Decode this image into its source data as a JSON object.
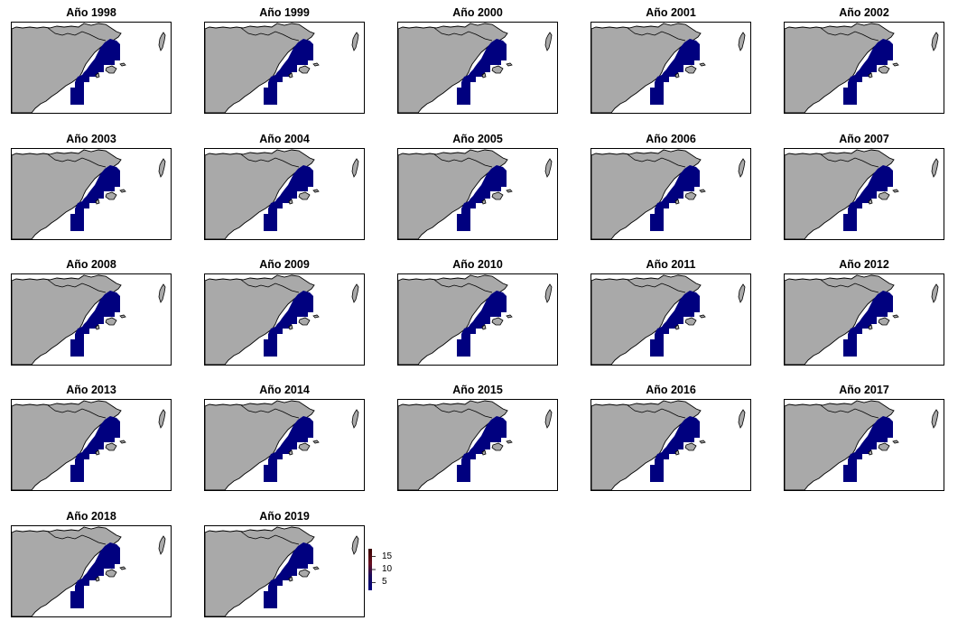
{
  "panels": [
    {
      "title": "Año 1998"
    },
    {
      "title": "Año 1999"
    },
    {
      "title": "Año 2000"
    },
    {
      "title": "Año 2001"
    },
    {
      "title": "Año 2002"
    },
    {
      "title": "Año 2003"
    },
    {
      "title": "Año 2004"
    },
    {
      "title": "Año 2005"
    },
    {
      "title": "Año 2006"
    },
    {
      "title": "Año 2007"
    },
    {
      "title": "Año 2008"
    },
    {
      "title": "Año 2009"
    },
    {
      "title": "Año 2010"
    },
    {
      "title": "Año 2011"
    },
    {
      "title": "Año 2012"
    },
    {
      "title": "Año 2013"
    },
    {
      "title": "Año 2014"
    },
    {
      "title": "Año 2015"
    },
    {
      "title": "Año 2016"
    },
    {
      "title": "Año 2017"
    },
    {
      "title": "Año 2018"
    },
    {
      "title": "Año 2019"
    }
  ],
  "legend": {
    "ticks": [
      {
        "label": "15",
        "value": 15
      },
      {
        "label": "10",
        "value": 10
      },
      {
        "label": "5",
        "value": 5
      }
    ],
    "min": 2,
    "max": 18,
    "colors": [
      "#00007f",
      "#3a0a3a",
      "#8b1a1a",
      "#4a0000"
    ]
  },
  "colors": {
    "land": "#a9a9a9",
    "sea": "#ffffff",
    "cells": "#00007f",
    "coast": "#000000"
  }
}
